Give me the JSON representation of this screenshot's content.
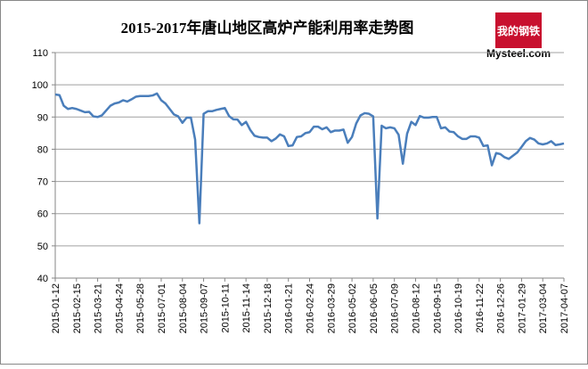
{
  "chart_data": {
    "type": "line",
    "title": "2015-2017年唐山地区高炉产能利用率走势图",
    "logo": {
      "cn": "我的钢铁",
      "en": "Mysteel.com"
    },
    "categories": [
      "2015-01-12",
      null,
      null,
      null,
      null,
      "2015-02-15",
      null,
      null,
      null,
      null,
      "2015-03-21",
      null,
      null,
      null,
      null,
      "2015-04-24",
      null,
      null,
      null,
      null,
      "2015-05-28",
      null,
      null,
      null,
      null,
      "2015-07-01",
      null,
      null,
      null,
      null,
      "2015-08-04",
      null,
      null,
      null,
      null,
      "2015-09-07",
      null,
      null,
      null,
      null,
      "2015-10-11",
      null,
      null,
      null,
      null,
      "2015-11-14",
      null,
      null,
      null,
      null,
      "2015-12-18",
      null,
      null,
      null,
      null,
      "2016-01-21",
      null,
      null,
      null,
      null,
      "2016-02-24",
      null,
      null,
      null,
      null,
      "2016-03-29",
      null,
      null,
      null,
      null,
      "2016-05-02",
      null,
      null,
      null,
      null,
      "2016-06-05",
      null,
      null,
      null,
      null,
      "2016-07-09",
      null,
      null,
      null,
      null,
      "2016-08-12",
      null,
      null,
      null,
      null,
      "2016-09-15",
      null,
      null,
      null,
      null,
      "2016-10-19",
      null,
      null,
      null,
      null,
      "2016-11-22",
      null,
      null,
      null,
      null,
      "2016-12-26",
      null,
      null,
      null,
      null,
      "2017-01-29",
      null,
      null,
      null,
      null,
      "2017-03-04",
      null,
      null,
      null,
      null,
      "2017-04-07"
    ],
    "series": [
      {
        "name": "高炉产能利用率",
        "color": "#4a7ebb",
        "values": [
          97,
          96.8,
          93.5,
          92.5,
          92.8,
          92.5,
          92,
          91.5,
          91.6,
          90.2,
          90,
          90.5,
          92,
          93.5,
          94.2,
          94.5,
          95.2,
          94.8,
          95.5,
          96.3,
          96.5,
          96.5,
          96.5,
          96.7,
          97.3,
          95.2,
          94.2,
          92.5,
          90.8,
          90.2,
          88.2,
          89.8,
          89.8,
          83,
          57,
          91,
          91.8,
          91.8,
          92.2,
          92.5,
          92.8,
          90.3,
          89.3,
          89.2,
          87.5,
          88.5,
          86,
          84.2,
          83.8,
          83.6,
          83.6,
          82.5,
          83.3,
          84.6,
          84,
          81,
          81.2,
          83.8,
          84,
          85,
          85.3,
          87,
          87,
          86.2,
          86.8,
          85.3,
          85.8,
          85.8,
          86.1,
          82,
          83.8,
          88,
          90.5,
          91.2,
          91,
          90.2,
          58.5,
          87.3,
          86.5,
          86.8,
          86.5,
          84.5,
          75.5,
          84.8,
          88.5,
          87.5,
          90.3,
          89.8,
          89.8,
          90,
          90,
          86.5,
          86.8,
          85.5,
          85.3,
          84,
          83.2,
          83.2,
          84,
          84,
          83.6,
          81,
          81.2,
          75,
          78.8,
          78.5,
          77.5,
          77,
          78,
          79,
          80.7,
          82.5,
          83.5,
          83,
          81.8,
          81.5,
          81.8,
          82.5,
          81.3,
          81.5,
          81.8
        ]
      }
    ],
    "ylim": [
      40,
      110
    ],
    "yticks": [
      40,
      50,
      60,
      70,
      80,
      90,
      100,
      110
    ],
    "grid": true,
    "legend": false
  }
}
